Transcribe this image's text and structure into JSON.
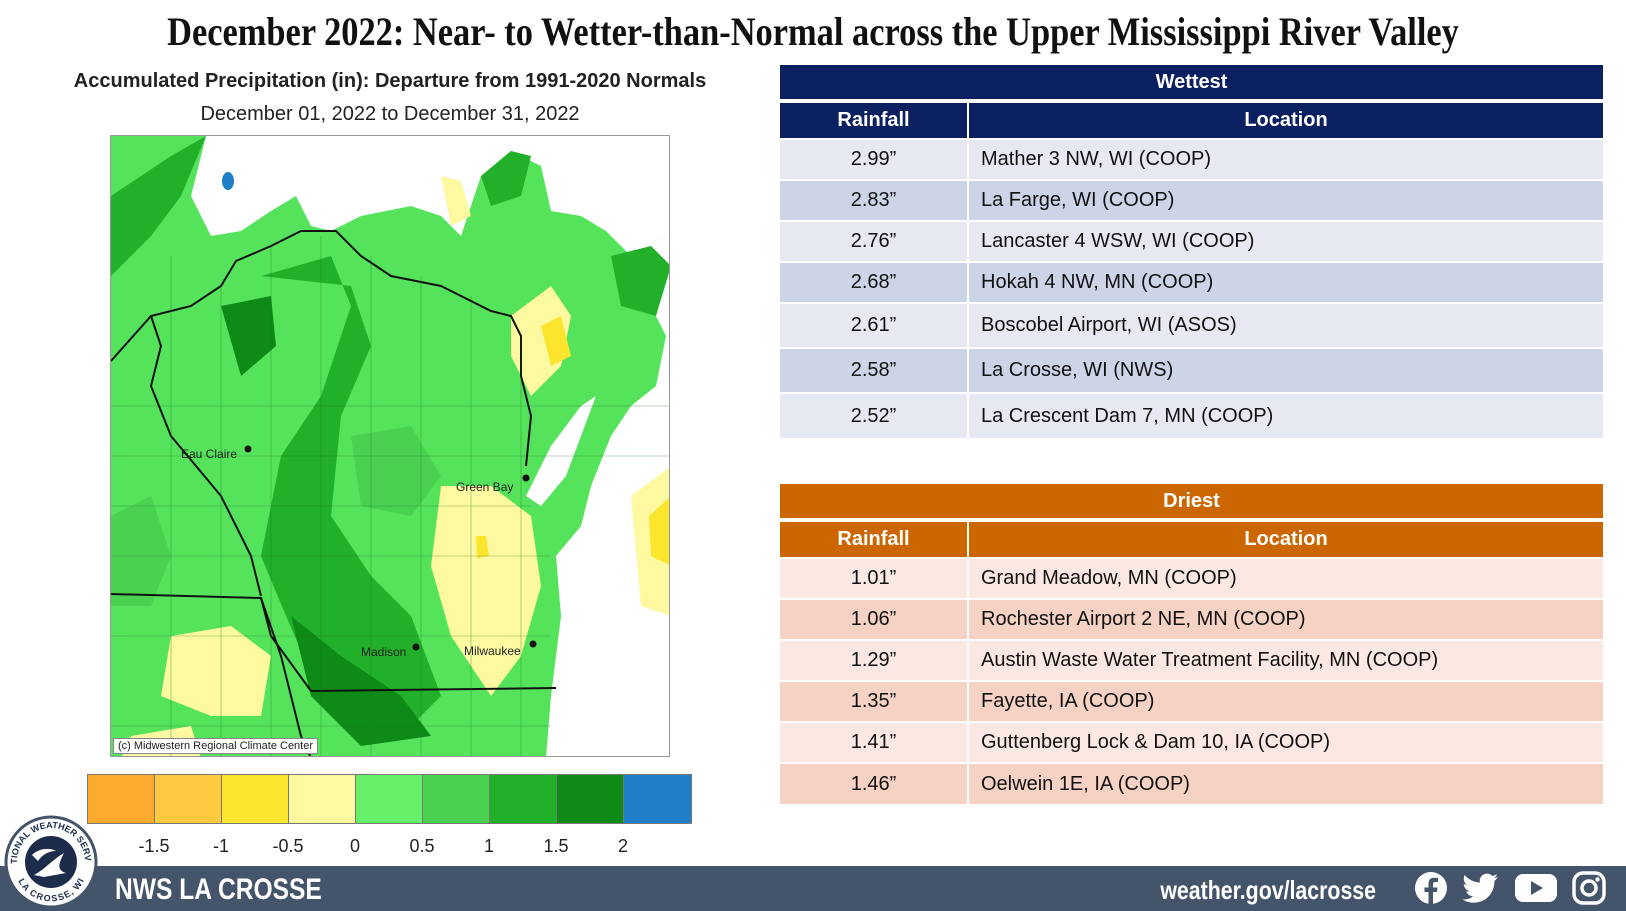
{
  "headline": "December 2022:  Near- to Wetter-than-Normal across the Upper Mississippi River Valley",
  "map": {
    "title": "Accumulated Precipitation (in): Departure from 1991-2020 Normals",
    "dates": "December 01, 2022 to December 31, 2022",
    "credit": "(c) Midwestern Regional Climate Center",
    "cities": [
      {
        "name": "Eau Claire"
      },
      {
        "name": "Green Bay"
      },
      {
        "name": "Madison"
      },
      {
        "name": "Milwaukee"
      }
    ],
    "legend": {
      "colors": [
        "#fdab2e",
        "#fdc941",
        "#fbe62d",
        "#fdf9a0",
        "#66f06a",
        "#4ad150",
        "#22b02a",
        "#0e8a17",
        "#1f7fc8"
      ],
      "ticks": [
        "-1.5",
        "-1",
        "-0.5",
        "0",
        "0.5",
        "1",
        "1.5",
        "2"
      ]
    }
  },
  "wettest": {
    "title": "Wettest",
    "col_rainfall": "Rainfall",
    "col_location": "Location",
    "rows": [
      {
        "value": "2.99”",
        "location": "Mather 3 NW, WI (COOP)"
      },
      {
        "value": "2.83”",
        "location": "La Farge, WI (COOP)"
      },
      {
        "value": "2.76”",
        "location": "Lancaster 4 WSW, WI (COOP)"
      },
      {
        "value": "2.68”",
        "location": "Hokah 4 NW, MN (COOP)"
      },
      {
        "value": "2.61”",
        "location": "Boscobel Airport, WI (ASOS)"
      },
      {
        "value": "2.58”",
        "location": "La Crosse, WI  (NWS)"
      },
      {
        "value": "2.52”",
        "location": "La Crescent Dam 7, MN (COOP)"
      }
    ]
  },
  "driest": {
    "title": "Driest",
    "col_rainfall": "Rainfall",
    "col_location": "Location",
    "rows": [
      {
        "value": "1.01”",
        "location": "Grand Meadow, MN (COOP)"
      },
      {
        "value": "1.06”",
        "location": "Rochester Airport 2 NE, MN (COOP)"
      },
      {
        "value": "1.29”",
        "location": "Austin Waste Water Treatment Facility, MN (COOP)"
      },
      {
        "value": "1.35”",
        "location": "Fayette, IA (COOP)"
      },
      {
        "value": "1.41”",
        "location": "Guttenberg Lock & Dam 10, IA (COOP)"
      },
      {
        "value": "1.46”",
        "location": "Oelwein 1E, IA (COOP)"
      }
    ]
  },
  "footer": {
    "office_name": "NWS LA CROSSE",
    "url": "weather.gov/lacrosse",
    "logo_text_top": "NATIONAL WEATHER SERVICE",
    "logo_text_bottom": "LA CROSSE, WI",
    "social_icons": [
      "facebook-icon",
      "twitter-icon",
      "youtube-icon",
      "instagram-icon"
    ]
  }
}
